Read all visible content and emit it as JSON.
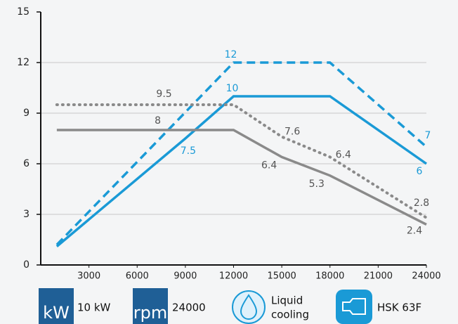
{
  "chart_data": {
    "type": "line",
    "xlim": [
      0,
      24000
    ],
    "xticks": [
      3000,
      6000,
      9000,
      12000,
      15000,
      18000,
      21000,
      24000
    ],
    "ylim": [
      0,
      15
    ],
    "yticks": [
      0,
      3,
      6,
      9,
      12,
      15
    ],
    "grid": true,
    "series": [
      {
        "color": "#1a9ad6",
        "style": "solid",
        "x": [
          1000,
          9000,
          12000,
          18000,
          24000
        ],
        "values": [
          1.1,
          7.5,
          10,
          10,
          6
        ],
        "value_labels": [
          null,
          "7.5",
          "10",
          null,
          "6"
        ]
      },
      {
        "color": "#1a9ad6",
        "style": "dashed",
        "x": [
          1000,
          12000,
          18000,
          24000
        ],
        "values": [
          1.2,
          12,
          12,
          7
        ],
        "value_labels": [
          null,
          "12",
          null,
          "7"
        ]
      },
      {
        "color": "#8a8a8a",
        "style": "dotted",
        "x": [
          1000,
          7500,
          12000,
          15000,
          18000,
          24000
        ],
        "values": [
          9.5,
          9.5,
          9.5,
          7.6,
          6.4,
          2.8
        ],
        "value_labels": [
          null,
          "9.5",
          null,
          "7.6",
          "6.4",
          "2.8"
        ]
      },
      {
        "color": "#8a8a8a",
        "style": "solid",
        "x": [
          1000,
          7500,
          12000,
          15000,
          18000,
          24000
        ],
        "values": [
          8,
          8,
          8,
          6.4,
          5.3,
          2.4
        ],
        "value_labels": [
          null,
          "8",
          null,
          "6.4",
          "5.3",
          "2.4"
        ]
      }
    ]
  },
  "specs": [
    {
      "icon": "kW",
      "label": "10 kW"
    },
    {
      "icon": "rpm",
      "label": "24000"
    },
    {
      "label_lines": [
        "Liquid",
        "cooling"
      ]
    },
    {
      "label": "HSK 63F"
    }
  ]
}
